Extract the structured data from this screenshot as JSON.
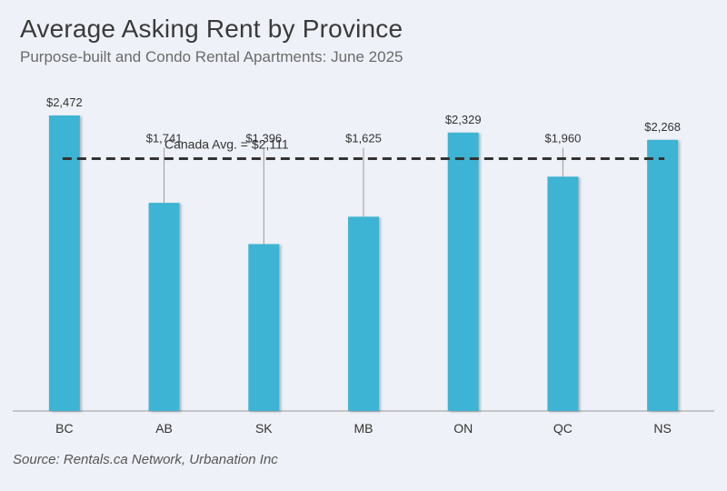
{
  "title": "Average Asking Rent by Province",
  "subtitle": "Purpose-built and Condo Rental Apartments: June 2025",
  "source": "Source: Rentals.ca Network, Urbanation Inc",
  "colors": {
    "bar": "#3db4d3",
    "reference_line": "#333333",
    "baseline": "#9a9a9a"
  },
  "chart_data": {
    "type": "bar",
    "categories": [
      "BC",
      "AB",
      "SK",
      "MB",
      "ON",
      "QC",
      "NS"
    ],
    "values": [
      2472,
      1741,
      1396,
      1625,
      2329,
      1960,
      2268
    ],
    "value_labels": [
      "$2,472",
      "$1,741",
      "$1,396",
      "$1,625",
      "$2,329",
      "$1,960",
      "$2,268"
    ],
    "reference_line": {
      "value": 2111,
      "label": "Canada Avg. = $2,111"
    },
    "ylim": [
      0,
      2472
    ],
    "grid": false,
    "xlabel": "",
    "ylabel": ""
  }
}
